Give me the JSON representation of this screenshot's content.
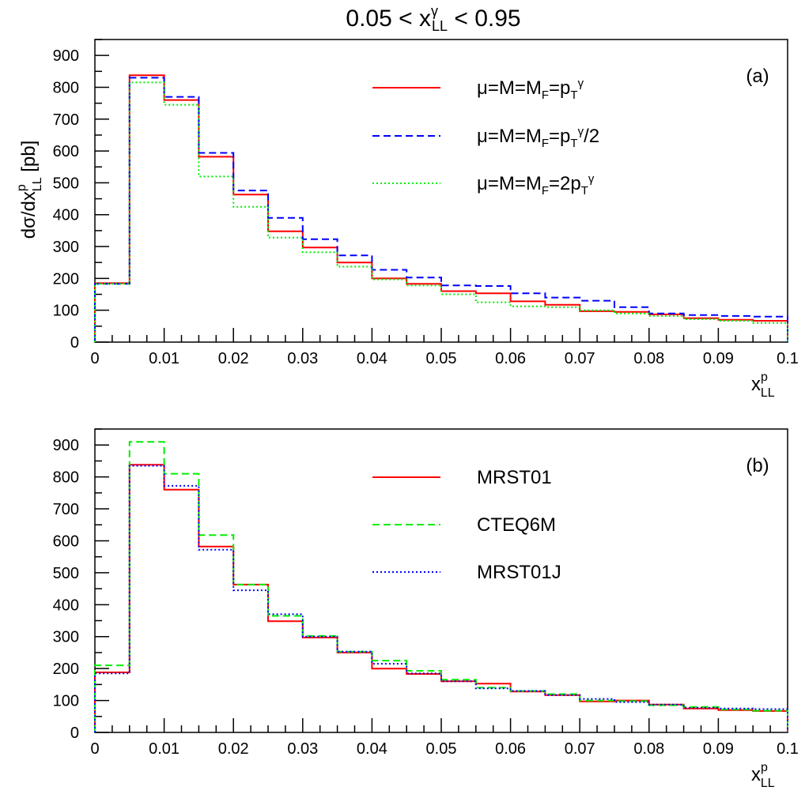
{
  "figure": {
    "title_main": "0.05 < x",
    "title_sup": "γ",
    "title_sub": "LL",
    "title_tail": " < 0.95"
  },
  "chart_data": [
    {
      "type": "line",
      "panel_label": "(a)",
      "xlabel": {
        "base": "x",
        "sup": "p",
        "sub": "LL"
      },
      "ylabel": {
        "prefix": "dσ/dx",
        "sup": "p",
        "sub": "LL",
        "suffix": " [pb]"
      },
      "xlim": [
        0,
        0.1
      ],
      "ylim": [
        0,
        950
      ],
      "x_ticks": [
        0,
        0.01,
        0.02,
        0.03,
        0.04,
        0.05,
        0.06,
        0.07,
        0.08,
        0.09,
        0.1
      ],
      "x_tick_labels": [
        "0",
        "0.01",
        "0.02",
        "0.03",
        "0.04",
        "0.05",
        "0.06",
        "0.07",
        "0.08",
        "0.09",
        "0.1"
      ],
      "y_ticks": [
        0,
        100,
        200,
        300,
        400,
        500,
        600,
        700,
        800,
        900
      ],
      "y_tick_labels": [
        "0",
        "100",
        "200",
        "300",
        "400",
        "500",
        "600",
        "700",
        "800",
        "900"
      ],
      "grid": false,
      "legend_position": "top-right",
      "bin_edges": [
        0,
        0.005,
        0.01,
        0.015,
        0.02,
        0.025,
        0.03,
        0.035,
        0.04,
        0.045,
        0.05,
        0.055,
        0.06,
        0.065,
        0.07,
        0.075,
        0.08,
        0.085,
        0.09,
        0.095,
        0.1
      ],
      "series": [
        {
          "name": "μ=M=M_F=p_T^γ",
          "label_parts": [
            {
              "t": "μ=M=M"
            },
            {
              "sub": "F"
            },
            {
              "t": "=p"
            },
            {
              "sub": "T"
            },
            {
              "sup": "γ"
            }
          ],
          "color": "#ff0000",
          "dash": "solid",
          "values": [
            185,
            838,
            760,
            582,
            463,
            348,
            297,
            250,
            200,
            183,
            160,
            153,
            128,
            117,
            97,
            95,
            87,
            75,
            70,
            67
          ]
        },
        {
          "name": "μ=M=M_F=p_T^γ/2",
          "label_parts": [
            {
              "t": "μ=M=M"
            },
            {
              "sub": "F"
            },
            {
              "t": "=p"
            },
            {
              "sub": "T"
            },
            {
              "sup": "γ"
            },
            {
              "t": "/2"
            }
          ],
          "color": "#0000ff",
          "dash": "dashed",
          "values": [
            183,
            830,
            770,
            594,
            476,
            390,
            323,
            272,
            227,
            203,
            178,
            176,
            153,
            140,
            130,
            110,
            90,
            85,
            82,
            80
          ]
        },
        {
          "name": "μ=M=M_F=2p_T^γ",
          "label_parts": [
            {
              "t": "μ=M=M"
            },
            {
              "sub": "F"
            },
            {
              "t": "=2p"
            },
            {
              "sub": "T"
            },
            {
              "sup": "γ"
            }
          ],
          "color": "#00ee00",
          "dash": "dotted",
          "values": [
            183,
            815,
            745,
            520,
            425,
            328,
            282,
            237,
            197,
            178,
            150,
            125,
            112,
            110,
            100,
            90,
            82,
            72,
            67,
            60
          ]
        }
      ]
    },
    {
      "type": "line",
      "panel_label": "(b)",
      "xlabel": {
        "base": "x",
        "sup": "p",
        "sub": "LL"
      },
      "ylabel": null,
      "xlim": [
        0,
        0.1
      ],
      "ylim": [
        0,
        950
      ],
      "x_ticks": [
        0,
        0.01,
        0.02,
        0.03,
        0.04,
        0.05,
        0.06,
        0.07,
        0.08,
        0.09,
        0.1
      ],
      "x_tick_labels": [
        "0",
        "0.01",
        "0.02",
        "0.03",
        "0.04",
        "0.05",
        "0.06",
        "0.07",
        "0.08",
        "0.09",
        "0.1"
      ],
      "y_ticks": [
        0,
        100,
        200,
        300,
        400,
        500,
        600,
        700,
        800,
        900
      ],
      "y_tick_labels": [
        "0",
        "100",
        "200",
        "300",
        "400",
        "500",
        "600",
        "700",
        "800",
        "900"
      ],
      "grid": false,
      "legend_position": "top-right",
      "bin_edges": [
        0,
        0.005,
        0.01,
        0.015,
        0.02,
        0.025,
        0.03,
        0.035,
        0.04,
        0.045,
        0.05,
        0.055,
        0.06,
        0.065,
        0.07,
        0.075,
        0.08,
        0.085,
        0.09,
        0.095,
        0.1
      ],
      "series": [
        {
          "name": "MRST01",
          "label_parts": [
            {
              "t": "MRST01"
            }
          ],
          "color": "#ff0000",
          "dash": "solid",
          "values": [
            188,
            838,
            760,
            582,
            463,
            348,
            297,
            250,
            200,
            183,
            160,
            153,
            128,
            117,
            97,
            100,
            87,
            75,
            70,
            67
          ]
        },
        {
          "name": "CTEQ6M",
          "label_parts": [
            {
              "t": "CTEQ6M"
            }
          ],
          "color": "#00ee00",
          "dash": "dashed",
          "values": [
            210,
            910,
            810,
            618,
            463,
            365,
            302,
            253,
            225,
            193,
            165,
            140,
            130,
            120,
            100,
            98,
            85,
            80,
            72,
            68
          ]
        },
        {
          "name": "MRST01J",
          "label_parts": [
            {
              "t": "MRST01J"
            }
          ],
          "color": "#0000ff",
          "dash": "dotted",
          "values": [
            185,
            835,
            772,
            572,
            445,
            370,
            300,
            253,
            215,
            185,
            160,
            138,
            130,
            117,
            105,
            95,
            87,
            77,
            75,
            73
          ]
        }
      ]
    }
  ]
}
